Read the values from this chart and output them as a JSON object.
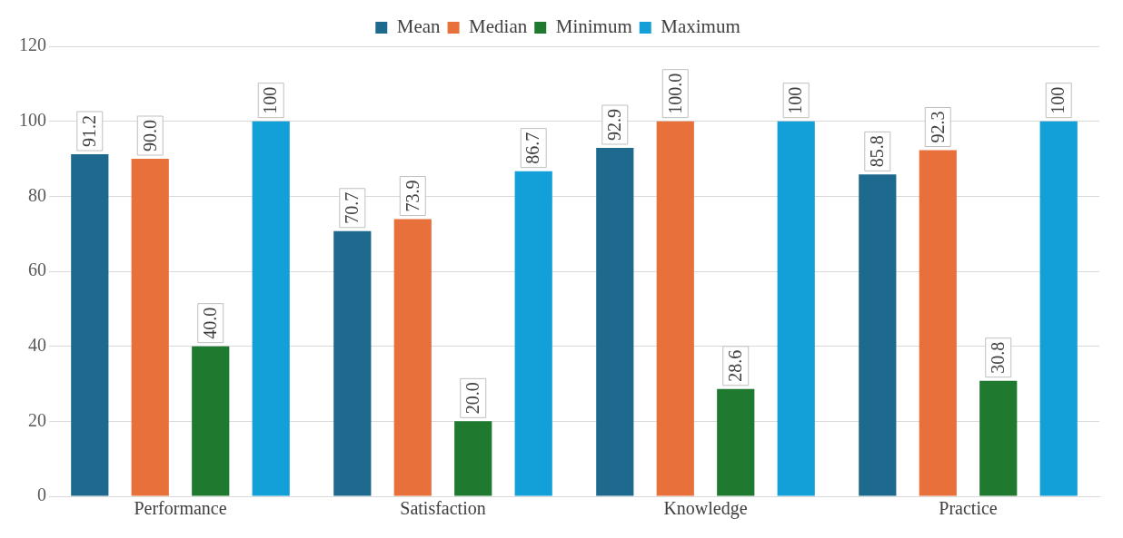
{
  "chart_data": {
    "type": "bar",
    "categories": [
      "Performance",
      "Satisfaction",
      "Knowledge",
      "Practice"
    ],
    "series": [
      {
        "name": "Mean",
        "color": "#1d6a8e",
        "values": [
          91.2,
          70.7,
          92.9,
          85.8
        ],
        "value_labels": [
          "91.2",
          "70.7",
          "92.9",
          "85.8"
        ]
      },
      {
        "name": "Median",
        "color": "#e8703a",
        "values": [
          90.0,
          73.9,
          100.0,
          92.3
        ],
        "value_labels": [
          "90.0",
          "73.9",
          "100.0",
          "92.3"
        ]
      },
      {
        "name": "Minimum",
        "color": "#1f7a30",
        "values": [
          40.0,
          20.0,
          28.6,
          30.8
        ],
        "value_labels": [
          "40.0",
          "20.0",
          "28.6",
          "30.8"
        ]
      },
      {
        "name": "Maximum",
        "color": "#139fd8",
        "values": [
          100,
          86.7,
          100,
          100
        ],
        "value_labels": [
          "100",
          "86.7",
          "100",
          "100"
        ]
      }
    ],
    "ylim": [
      0,
      120
    ],
    "yticks": [
      0,
      20,
      40,
      60,
      80,
      100,
      120
    ],
    "grid": "y",
    "legend": "top"
  }
}
